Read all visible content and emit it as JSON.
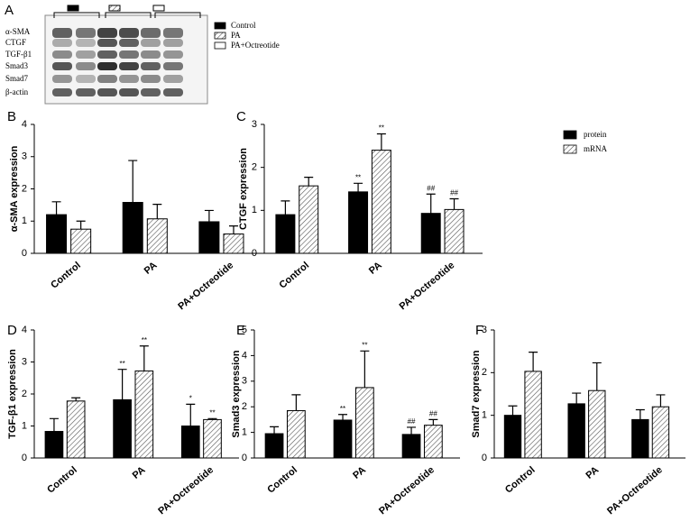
{
  "blot": {
    "panel": "A",
    "rows": [
      "α-SMA",
      "CTGF",
      "TGF-β1",
      "Smad3",
      "Smad7",
      "β-actin"
    ],
    "legend": [
      "Control",
      "PA",
      "PA+Octreotide"
    ]
  },
  "chart_data": [
    {
      "type": "bar",
      "panel": "B",
      "ylabel": "α-SMA expression",
      "categories": [
        "Control",
        "PA",
        "PA+Octreotide"
      ],
      "ylim": [
        0,
        4
      ],
      "yticks": [
        0,
        1,
        2,
        3,
        4
      ],
      "legend": false,
      "series": [
        {
          "color": "#000000",
          "values": [
            1.2,
            1.58,
            0.98
          ],
          "errors": [
            0.4,
            1.3,
            0.35
          ],
          "marks": [
            null,
            null,
            null
          ]
        },
        {
          "color": "hatch",
          "values": [
            0.75,
            1.07,
            0.6
          ],
          "errors": [
            0.25,
            0.45,
            0.25
          ],
          "marks": [
            null,
            null,
            null
          ]
        }
      ]
    },
    {
      "type": "bar",
      "panel": "C",
      "ylabel": "CTGF  expression",
      "categories": [
        "Control",
        "PA",
        "PA+Octreotide"
      ],
      "ylim": [
        0,
        3
      ],
      "yticks": [
        0,
        1,
        2,
        3
      ],
      "legend": true,
      "series": [
        {
          "name": "protein",
          "color": "#000000",
          "values": [
            0.9,
            1.43,
            0.93
          ],
          "errors": [
            0.32,
            0.2,
            0.45
          ],
          "marks": [
            null,
            "**",
            "##"
          ]
        },
        {
          "name": "mRNA",
          "color": "hatch",
          "values": [
            1.57,
            2.4,
            1.02
          ],
          "errors": [
            0.2,
            0.38,
            0.25
          ],
          "marks": [
            null,
            "**",
            "##"
          ]
        }
      ]
    },
    {
      "type": "bar",
      "panel": "D",
      "ylabel": "TGF-β1 expression",
      "categories": [
        "Control",
        "PA",
        "PA+Octreotide"
      ],
      "ylim": [
        0,
        4
      ],
      "yticks": [
        0,
        1,
        2,
        3,
        4
      ],
      "legend": false,
      "series": [
        {
          "color": "#000000",
          "values": [
            0.83,
            1.82,
            1.0
          ],
          "errors": [
            0.4,
            0.95,
            0.68
          ],
          "marks": [
            null,
            "**",
            "*"
          ]
        },
        {
          "color": "hatch",
          "values": [
            1.78,
            2.72,
            1.2
          ],
          "errors": [
            0.1,
            0.78,
            0.03
          ],
          "marks": [
            null,
            "**",
            "**"
          ]
        }
      ]
    },
    {
      "type": "bar",
      "panel": "E",
      "ylabel": "Smad3  expression",
      "categories": [
        "Control",
        "PA",
        "PA+Octreotide"
      ],
      "ylim": [
        0,
        5
      ],
      "yticks": [
        0,
        1,
        2,
        3,
        4,
        5
      ],
      "legend": false,
      "series": [
        {
          "color": "#000000",
          "values": [
            0.95,
            1.48,
            0.92
          ],
          "errors": [
            0.27,
            0.22,
            0.28
          ],
          "marks": [
            null,
            "**",
            "##"
          ]
        },
        {
          "color": "hatch",
          "values": [
            1.85,
            2.75,
            1.28
          ],
          "errors": [
            0.62,
            1.43,
            0.22
          ],
          "marks": [
            null,
            "**",
            "##"
          ]
        }
      ]
    },
    {
      "type": "bar",
      "panel": "F",
      "ylabel": "Smad7 expression",
      "categories": [
        "Control",
        "PA",
        "PA+Octreotide"
      ],
      "ylim": [
        0,
        3
      ],
      "yticks": [
        0,
        1,
        2,
        3
      ],
      "legend": false,
      "series": [
        {
          "color": "#000000",
          "values": [
            1.0,
            1.27,
            0.9
          ],
          "errors": [
            0.22,
            0.25,
            0.23
          ],
          "marks": [
            null,
            null,
            null
          ]
        },
        {
          "color": "hatch",
          "values": [
            2.03,
            1.58,
            1.2
          ],
          "errors": [
            0.45,
            0.65,
            0.28
          ],
          "marks": [
            null,
            null,
            null
          ]
        }
      ]
    }
  ]
}
